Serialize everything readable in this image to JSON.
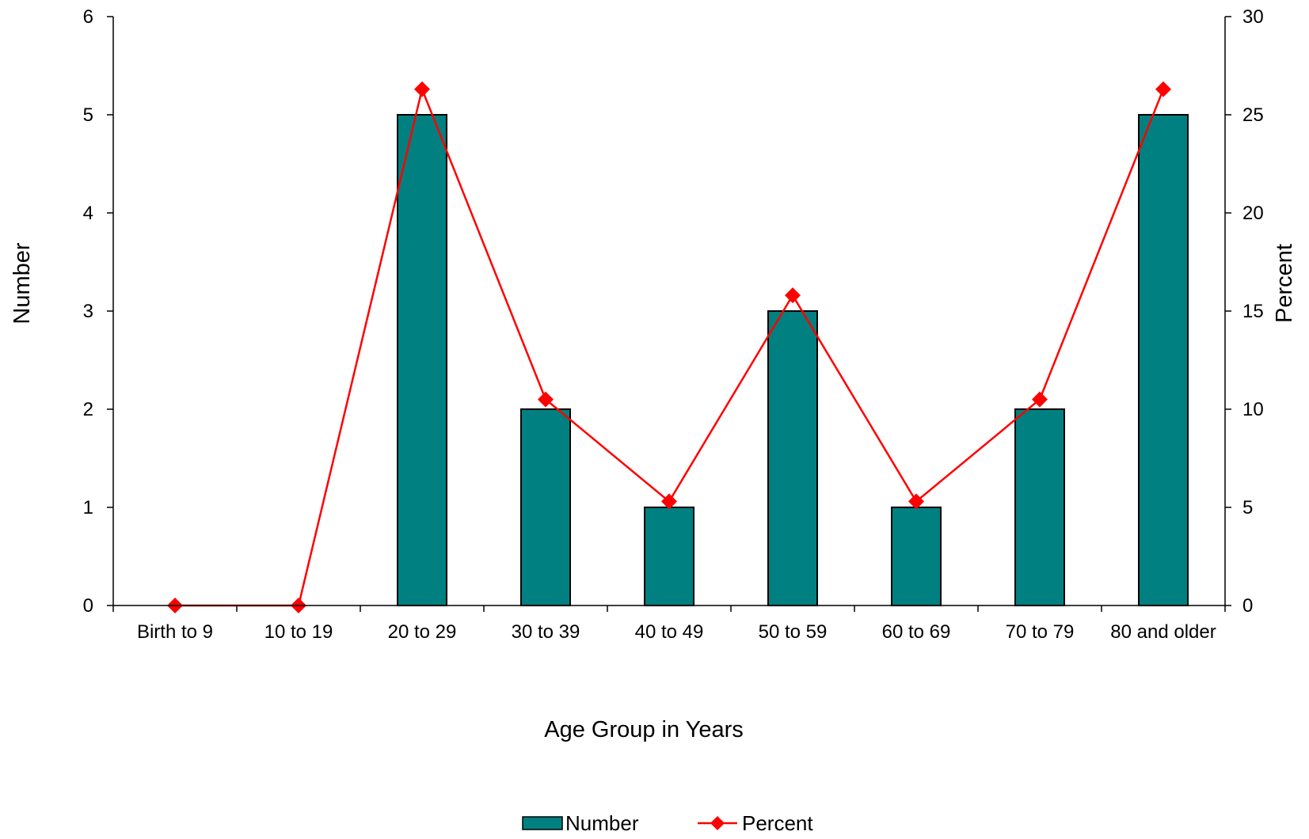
{
  "chart_data": {
    "type": "bar",
    "categories": [
      "Birth to 9",
      "10 to 19",
      "20 to 29",
      "30 to 39",
      "40 to 49",
      "50 to 59",
      "60 to 69",
      "70 to 79",
      "80 and older"
    ],
    "series": [
      {
        "name": "Number",
        "type": "bar",
        "axis": "left",
        "values": [
          0,
          0,
          5,
          2,
          1,
          3,
          1,
          2,
          5
        ],
        "color": "#008080"
      },
      {
        "name": "Percent",
        "type": "line",
        "axis": "right",
        "marker": "diamond",
        "values": [
          0,
          0,
          26.3,
          10.5,
          5.3,
          15.8,
          5.3,
          10.5,
          26.3
        ],
        "color": "#ff0000"
      }
    ],
    "xlabel": "Age Group in Years",
    "ylabel": "Number",
    "y2label": "Percent",
    "ylim": [
      0,
      6
    ],
    "y2lim": [
      0,
      30
    ],
    "yticks": [
      "0",
      "1",
      "2",
      "3",
      "4",
      "5",
      "6"
    ],
    "y2ticks": [
      "0",
      "5",
      "10",
      "15",
      "20",
      "25",
      "30"
    ],
    "grid": false,
    "legend_position": "bottom-center"
  }
}
